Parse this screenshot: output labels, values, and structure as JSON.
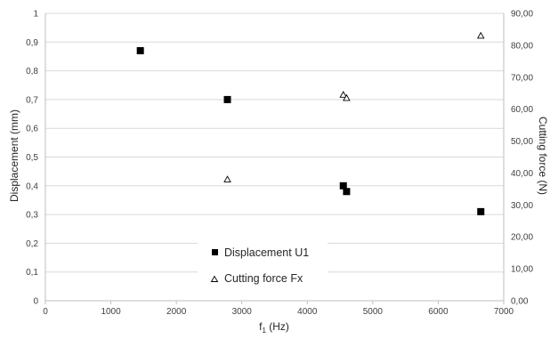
{
  "chart_data": {
    "type": "scatter",
    "title": "",
    "xlabel_main": "f",
    "xlabel_sub": "1",
    "xlabel_unit": " (Hz)",
    "ylabel": "Displacement (mm)",
    "y2label": "Cutting force (N)",
    "xlim": [
      0,
      7000
    ],
    "ylim": [
      0,
      1
    ],
    "y2lim": [
      0,
      90
    ],
    "x_ticks": [
      "0",
      "1000",
      "2000",
      "3000",
      "4000",
      "5000",
      "6000",
      "7000"
    ],
    "y_ticks": [
      "0",
      "0,1",
      "0,2",
      "0,3",
      "0,4",
      "0,5",
      "0,6",
      "0,7",
      "0,8",
      "0,9",
      "1"
    ],
    "y2_ticks": [
      "0,00",
      "10,00",
      "20,00",
      "30,00",
      "40,00",
      "50,00",
      "60,00",
      "70,00",
      "80,00",
      "90,00"
    ],
    "grid": true,
    "legend_position": "bottom-center",
    "series": [
      {
        "name": "Displacement U1",
        "axis": "left",
        "marker": "square",
        "color": "#000000",
        "points": [
          {
            "x": 1450,
            "y": 0.87
          },
          {
            "x": 2780,
            "y": 0.7
          },
          {
            "x": 4550,
            "y": 0.4
          },
          {
            "x": 4600,
            "y": 0.38
          },
          {
            "x": 6650,
            "y": 0.31
          }
        ]
      },
      {
        "name": "Cutting force Fx",
        "axis": "right",
        "marker": "triangle-open",
        "color": "#000000",
        "points": [
          {
            "x": 2780,
            "y": 38.0
          },
          {
            "x": 4550,
            "y": 64.5
          },
          {
            "x": 4600,
            "y": 63.5
          },
          {
            "x": 6650,
            "y": 83.0
          }
        ]
      }
    ]
  }
}
